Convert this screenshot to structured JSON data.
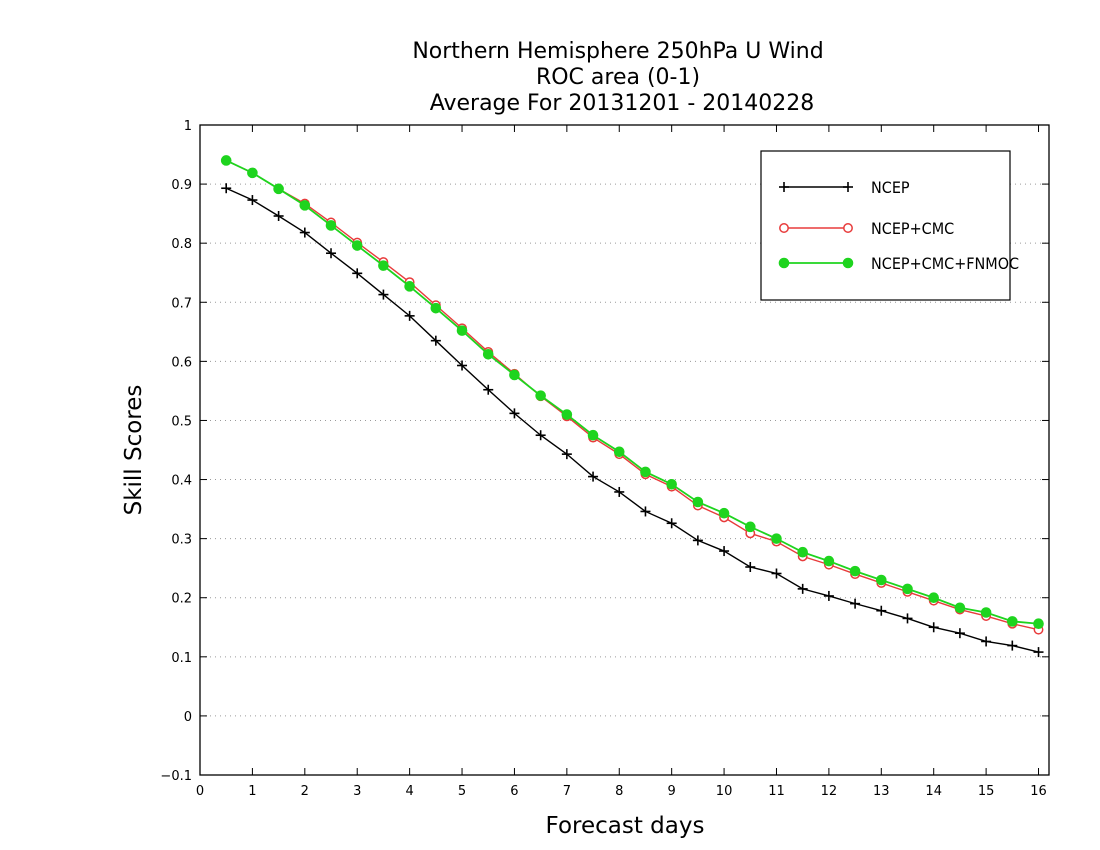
{
  "chart_data": {
    "type": "line",
    "title_lines": [
      "Northern Hemisphere 250hPa U Wind",
      "ROC area (0-1)",
      "Average For 20131201 - 20140228"
    ],
    "xlabel": "Forecast days",
    "ylabel": "Skill Scores",
    "xlim": [
      0,
      16.2
    ],
    "ylim": [
      -0.1,
      1
    ],
    "x_ticks": [
      "0",
      "1",
      "2",
      "3",
      "4",
      "5",
      "6",
      "7",
      "8",
      "9",
      "10",
      "11",
      "12",
      "13",
      "14",
      "15",
      "16"
    ],
    "y_ticks": [
      "−0.1",
      "0",
      "0.1",
      "0.2",
      "0.3",
      "0.4",
      "0.5",
      "0.6",
      "0.7",
      "0.8",
      "0.9",
      "1"
    ],
    "grid": "horizontal dotted",
    "legend_position": "top-right",
    "x": [
      0.5,
      1,
      1.5,
      2,
      2.5,
      3,
      3.5,
      4,
      4.5,
      5,
      5.5,
      6,
      6.5,
      7,
      7.5,
      8,
      8.5,
      9,
      9.5,
      10,
      10.5,
      11,
      11.5,
      12,
      12.5,
      13,
      13.5,
      14,
      14.5,
      15,
      15.5,
      16
    ],
    "series": [
      {
        "name": "NCEP",
        "color": "#000000",
        "marker": "plus",
        "values": [
          0.893,
          0.873,
          0.846,
          0.818,
          0.783,
          0.749,
          0.713,
          0.677,
          0.635,
          0.593,
          0.552,
          0.512,
          0.475,
          0.443,
          0.405,
          0.379,
          0.346,
          0.326,
          0.297,
          0.279,
          0.252,
          0.241,
          0.215,
          0.203,
          0.19,
          0.178,
          0.165,
          0.15,
          0.14,
          0.126,
          0.119,
          0.108
        ]
      },
      {
        "name": "NCEP+CMC",
        "color": "#e83b3b",
        "marker": "open-circle",
        "values": [
          0.94,
          0.919,
          0.892,
          0.867,
          0.835,
          0.801,
          0.768,
          0.734,
          0.695,
          0.656,
          0.616,
          0.579,
          0.541,
          0.507,
          0.471,
          0.443,
          0.409,
          0.388,
          0.356,
          0.336,
          0.309,
          0.295,
          0.27,
          0.256,
          0.24,
          0.225,
          0.21,
          0.195,
          0.18,
          0.169,
          0.156,
          0.146
        ]
      },
      {
        "name": "NCEP+CMC+FNMOC",
        "color": "#1ed41e",
        "marker": "filled-circle",
        "values": [
          0.94,
          0.919,
          0.892,
          0.864,
          0.83,
          0.796,
          0.762,
          0.727,
          0.69,
          0.652,
          0.612,
          0.577,
          0.542,
          0.51,
          0.475,
          0.447,
          0.413,
          0.392,
          0.362,
          0.343,
          0.32,
          0.3,
          0.277,
          0.262,
          0.245,
          0.23,
          0.215,
          0.2,
          0.183,
          0.175,
          0.16,
          0.156
        ]
      }
    ]
  }
}
